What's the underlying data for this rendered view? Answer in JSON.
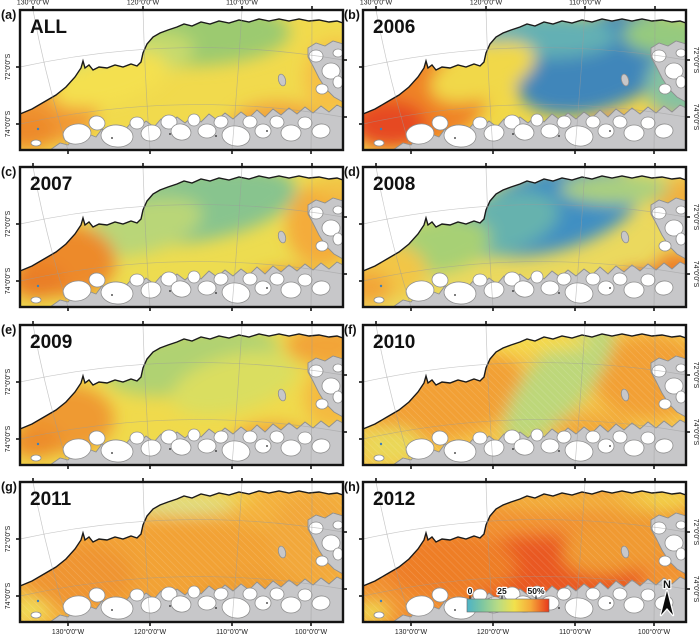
{
  "figure": {
    "type": "map-grid",
    "rows": 4,
    "cols": 2,
    "region": "Amundsen Sea coastal sector, Antarctica"
  },
  "axes": {
    "lon_top": [
      "130°0'0\"W",
      "120°0'0\"W",
      "110°0'0\"W"
    ],
    "lon_bottom": [
      "130°0'0\"W",
      "120°0'0\"W",
      "110°0'0\"W",
      "100°0'0\"W"
    ],
    "lat": [
      "72°0'0\"S",
      "74°0'0\"S"
    ]
  },
  "legend": {
    "tick_labels": [
      "0",
      "25",
      "50%"
    ],
    "gradient": [
      "#4db3c6",
      "#7cc6a2",
      "#b9dc84",
      "#f2e14c",
      "#f5a839",
      "#e8391c"
    ]
  },
  "north_arrow": {
    "label": "N"
  },
  "colors": {
    "land": "#c7c7c9",
    "land_outline": "#8e8f90",
    "ice": "#ffffff",
    "coast": "#1a1a1a",
    "graticule": "#9a9a9a",
    "frame": "#141414",
    "lake_dot": "#3f7fb8"
  },
  "panels": [
    {
      "letter": "(a)",
      "year": "ALL",
      "col": 0,
      "row": 0,
      "textured": false,
      "description": "green offshore center, yellow mid-shelf, orange along west coast and southeast",
      "base": "#f1da4d",
      "blobs": [
        [
          165,
          22,
          105,
          34,
          0,
          "#9cca70"
        ],
        [
          110,
          48,
          65,
          24,
          -10,
          "#c6da6e"
        ],
        [
          28,
          98,
          50,
          36,
          0,
          "#f19a34"
        ],
        [
          8,
          120,
          28,
          20,
          0,
          "#ed8a2c"
        ],
        [
          258,
          116,
          48,
          24,
          0,
          "#f2a63c"
        ],
        [
          316,
          68,
          32,
          38,
          0,
          "#f6c044"
        ],
        [
          90,
          70,
          60,
          24,
          -15,
          "#f4e050"
        ]
      ]
    },
    {
      "letter": "(b)",
      "year": "2006",
      "col": 1,
      "row": 0,
      "textured": false,
      "description": "strong blue (low %) northeast offshore, teal along north, orange-red southwest coast and southeast corner",
      "base": "#f1d848",
      "blobs": [
        [
          238,
          52,
          88,
          46,
          -20,
          "#3f86ba"
        ],
        [
          186,
          26,
          68,
          22,
          0,
          "#63b0b4"
        ],
        [
          302,
          24,
          42,
          20,
          0,
          "#96ca7e"
        ],
        [
          318,
          75,
          35,
          35,
          0,
          "#86c2a0"
        ],
        [
          58,
          92,
          68,
          44,
          -15,
          "#ef8228"
        ],
        [
          26,
          114,
          38,
          24,
          0,
          "#e64a20"
        ],
        [
          256,
          126,
          33,
          16,
          0,
          "#e1401c"
        ],
        [
          298,
          118,
          26,
          14,
          0,
          "#f2a83e"
        ],
        [
          120,
          62,
          55,
          26,
          -20,
          "#f1d848"
        ]
      ]
    },
    {
      "letter": "(c)",
      "year": "2007",
      "col": 0,
      "row": 1,
      "textured": false,
      "description": "teal-green center offshore, strong orange west coast, orange east edge and southeast",
      "base": "#eddc50",
      "blobs": [
        [
          178,
          38,
          100,
          36,
          -10,
          "#88c48e"
        ],
        [
          122,
          60,
          62,
          26,
          -15,
          "#b9d678"
        ],
        [
          48,
          94,
          48,
          36,
          0,
          "#ed8a2a"
        ],
        [
          18,
          114,
          28,
          18,
          0,
          "#ea7e26"
        ],
        [
          302,
          58,
          36,
          42,
          0,
          "#f4ac3a"
        ],
        [
          268,
          122,
          42,
          20,
          0,
          "#f09630"
        ],
        [
          318,
          20,
          25,
          12,
          0,
          "#f2c244"
        ]
      ]
    },
    {
      "letter": "(d)",
      "year": "2008",
      "col": 1,
      "row": 1,
      "textured": false,
      "description": "deep blue north-central offshore grading to green/yellow west, red patch southeast corner",
      "base": "#ebd95e",
      "blobs": [
        [
          188,
          44,
          92,
          40,
          -15,
          "#408fc2"
        ],
        [
          132,
          58,
          66,
          30,
          -15,
          "#66b2ae"
        ],
        [
          76,
          78,
          52,
          28,
          -10,
          "#a7d074"
        ],
        [
          22,
          104,
          42,
          28,
          0,
          "#f2c646"
        ],
        [
          6,
          121,
          22,
          16,
          0,
          "#f2a438"
        ],
        [
          282,
          122,
          36,
          18,
          0,
          "#e23c1a"
        ],
        [
          314,
          102,
          22,
          16,
          0,
          "#ee7e28"
        ],
        [
          319,
          33,
          28,
          22,
          0,
          "#f2b03e"
        ],
        [
          252,
          22,
          55,
          15,
          0,
          "#abd07e"
        ]
      ]
    },
    {
      "letter": "(e)",
      "year": "2009",
      "col": 0,
      "row": 2,
      "textured": false,
      "description": "yellow-green overall, orange northeast corner, orange west coast and southeast",
      "base": "#f0da4c",
      "blobs": [
        [
          172,
          36,
          88,
          32,
          -10,
          "#b0d272"
        ],
        [
          215,
          58,
          65,
          28,
          -15,
          "#dade60"
        ],
        [
          306,
          20,
          40,
          20,
          0,
          "#f2a438"
        ],
        [
          48,
          94,
          46,
          34,
          0,
          "#ef9a32"
        ],
        [
          16,
          117,
          26,
          16,
          0,
          "#ed8c2c"
        ],
        [
          252,
          118,
          42,
          20,
          0,
          "#f2a63a"
        ],
        [
          312,
          72,
          28,
          32,
          0,
          "#f4ba40"
        ]
      ]
    },
    {
      "letter": "(f)",
      "year": "2010",
      "col": 1,
      "row": 2,
      "textured": true,
      "description": "orange west and east with diagonal green band through center, small green patch southeast",
      "base": "#f5c448",
      "blobs": [
        [
          80,
          68,
          82,
          46,
          -10,
          "#f2a036"
        ],
        [
          286,
          52,
          56,
          42,
          0,
          "#f2a036"
        ],
        [
          196,
          56,
          30,
          78,
          40,
          "#bdd77a"
        ],
        [
          270,
          126,
          26,
          13,
          0,
          "#abd06e"
        ],
        [
          150,
          16,
          78,
          12,
          0,
          "#f5da4c"
        ],
        [
          28,
          120,
          32,
          18,
          0,
          "#ead858"
        ],
        [
          230,
          105,
          40,
          18,
          0,
          "#f2aa3a"
        ]
      ]
    },
    {
      "letter": "(g)",
      "year": "2011",
      "col": 0,
      "row": 3,
      "textured": true,
      "description": "orange across the whole shelf, yellow-green band along the north boundary, yellow southwest corner",
      "base": "#f4b23e",
      "blobs": [
        [
          160,
          85,
          135,
          48,
          0,
          "#f2a234"
        ],
        [
          58,
          94,
          56,
          34,
          0,
          "#ef9530"
        ],
        [
          150,
          14,
          88,
          11,
          0,
          "#f2d64a"
        ],
        [
          158,
          24,
          58,
          9,
          0,
          "#dcde88"
        ],
        [
          8,
          128,
          22,
          13,
          0,
          "#f0dc56"
        ],
        [
          292,
          58,
          42,
          48,
          0,
          "#f2a83a"
        ],
        [
          232,
          114,
          56,
          22,
          0,
          "#ef9e32"
        ]
      ]
    },
    {
      "letter": "(h)",
      "year": "2012",
      "col": 1,
      "row": 3,
      "textured": true,
      "description": "strongest orange-red (high %) across central and southern shelf, yellow along northeast boundary",
      "base": "#f19232",
      "blobs": [
        [
          182,
          94,
          98,
          40,
          0,
          "#e95920"
        ],
        [
          88,
          84,
          66,
          33,
          0,
          "#ee7e26"
        ],
        [
          292,
          16,
          52,
          14,
          0,
          "#f2d048"
        ],
        [
          200,
          18,
          85,
          10,
          0,
          "#f2b23e"
        ],
        [
          8,
          130,
          20,
          12,
          0,
          "#f0d650"
        ],
        [
          321,
          118,
          22,
          18,
          0,
          "#f2a636"
        ],
        [
          258,
          60,
          60,
          30,
          -15,
          "#f09a30"
        ]
      ]
    }
  ]
}
